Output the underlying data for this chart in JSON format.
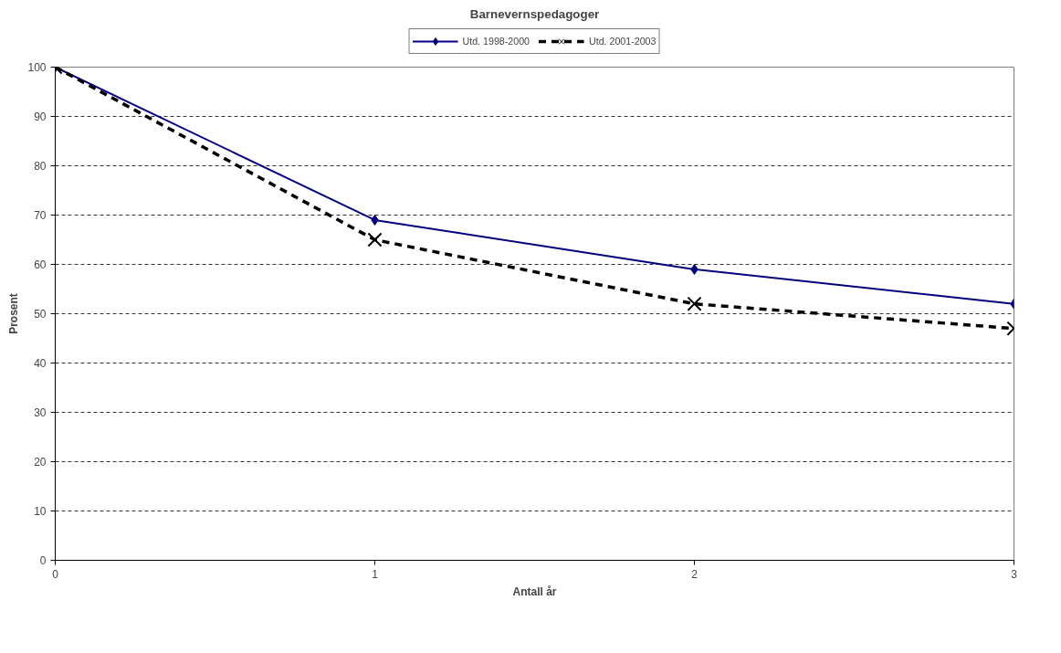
{
  "chart_data": {
    "type": "line",
    "title": "Barnevernspedagoger",
    "xlabel": "Antall år",
    "ylabel": "Prosent",
    "x": [
      0,
      1,
      2,
      3
    ],
    "xlim": [
      0,
      3
    ],
    "xticks": [
      0,
      1,
      2,
      3
    ],
    "ylim": [
      0,
      100
    ],
    "yticks": [
      0,
      10,
      20,
      30,
      40,
      50,
      60,
      70,
      80,
      90,
      100
    ],
    "grid": "y",
    "legend": "top",
    "series": [
      {
        "name": "Utd. 1998-2000",
        "color": "#000080",
        "values": [
          100,
          69,
          59,
          52
        ],
        "marker": "diamond",
        "line_style": "solid"
      },
      {
        "name": "Utd. 2001-2003",
        "color": "#000000",
        "values": [
          100,
          65,
          52,
          47
        ],
        "marker": "cross",
        "line_style": "dashed"
      }
    ]
  }
}
